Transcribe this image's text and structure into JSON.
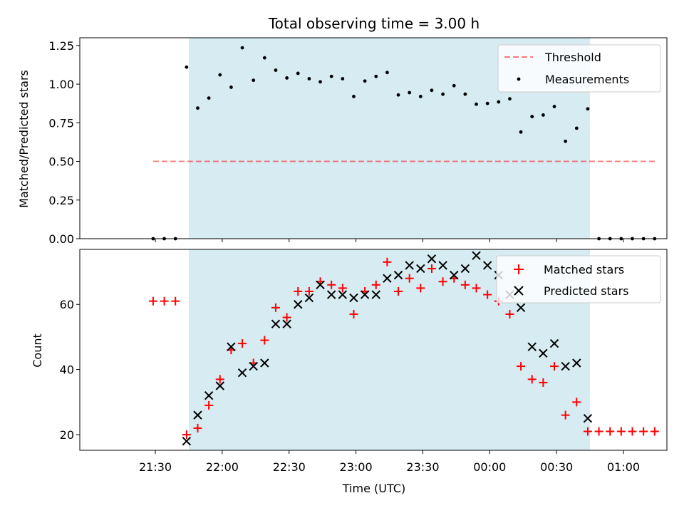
{
  "colors": {
    "span": "#add8e6",
    "threshold": "#ff0000",
    "measurement": "#000000",
    "matched": "#ff0000",
    "predicted": "#000000"
  },
  "chart_data": [
    {
      "type": "scatter",
      "title": "Total observing time = 3.00 h",
      "xlabel": "",
      "ylabel": "Matched/Predicted stars",
      "ylim": [
        0,
        1.3
      ],
      "yticks": [
        "0.00",
        "0.25",
        "0.50",
        "0.75",
        "1.00",
        "1.25"
      ],
      "grid": false,
      "legend": "top-right",
      "shaded_span": [
        "21:45",
        "00:45"
      ],
      "threshold": {
        "name": "Threshold",
        "value": 0.5,
        "x_range": [
          "21:29",
          "01:15"
        ]
      },
      "measurements": {
        "name": "Measurements",
        "x": [
          "21:29",
          "21:34",
          "21:39",
          "21:44",
          "21:49",
          "21:54",
          "21:59",
          "22:04",
          "22:09",
          "22:14",
          "22:19",
          "22:24",
          "22:29",
          "22:34",
          "22:39",
          "22:44",
          "22:49",
          "22:54",
          "22:59",
          "23:04",
          "23:09",
          "23:14",
          "23:19",
          "23:24",
          "23:29",
          "23:34",
          "23:39",
          "23:44",
          "23:49",
          "23:54",
          "23:59",
          "00:04",
          "00:09",
          "00:14",
          "00:19",
          "00:24",
          "00:29",
          "00:34",
          "00:39",
          "00:44",
          "00:49",
          "00:54",
          "00:59",
          "01:04",
          "01:09",
          "01:14"
        ],
        "y": [
          0,
          0,
          0,
          1.11,
          0.845,
          0.91,
          1.06,
          0.98,
          1.235,
          1.025,
          1.17,
          1.09,
          1.04,
          1.07,
          1.035,
          1.015,
          1.05,
          1.035,
          0.92,
          1.02,
          1.05,
          1.075,
          0.93,
          0.945,
          0.92,
          0.96,
          0.935,
          0.99,
          0.935,
          0.87,
          0.875,
          0.885,
          0.905,
          0.69,
          0.79,
          0.8,
          0.855,
          0.63,
          0.715,
          0.84,
          0,
          0,
          0,
          0,
          0,
          0
        ]
      }
    },
    {
      "type": "scatter",
      "title": "",
      "xlabel": "Time (UTC)",
      "ylabel": "Count",
      "ylim": [
        15.2,
        76.9
      ],
      "yticks": [
        "20",
        "40",
        "60"
      ],
      "xticks": [
        "21:30",
        "22:00",
        "22:30",
        "23:00",
        "23:30",
        "00:00",
        "00:30",
        "01:00"
      ],
      "grid": false,
      "legend": "top-right",
      "shaded_span": [
        "21:45",
        "00:45"
      ],
      "series": [
        {
          "name": "Matched stars",
          "marker": "+",
          "x": [
            "21:29",
            "21:34",
            "21:39",
            "21:44",
            "21:49",
            "21:54",
            "21:59",
            "22:04",
            "22:09",
            "22:14",
            "22:19",
            "22:24",
            "22:29",
            "22:34",
            "22:39",
            "22:44",
            "22:49",
            "22:54",
            "22:59",
            "23:04",
            "23:09",
            "23:14",
            "23:19",
            "23:24",
            "23:29",
            "23:34",
            "23:39",
            "23:44",
            "23:49",
            "23:54",
            "23:59",
            "00:04",
            "00:09",
            "00:14",
            "00:19",
            "00:24",
            "00:29",
            "00:34",
            "00:39",
            "00:44",
            "00:49",
            "00:54",
            "00:59",
            "01:04",
            "01:09",
            "01:14"
          ],
          "y": [
            61,
            61,
            61,
            20,
            22,
            29,
            37,
            46,
            48,
            42,
            49,
            59,
            56,
            64,
            64,
            67,
            66,
            65,
            57,
            64,
            66,
            73,
            64,
            68,
            65,
            71,
            67,
            68,
            66,
            65,
            63,
            61,
            57,
            41,
            37,
            36,
            41,
            26,
            30,
            21,
            21,
            21,
            21,
            21,
            21,
            21
          ]
        },
        {
          "name": "Predicted stars",
          "marker": "x",
          "x": [
            "21:44",
            "21:49",
            "21:54",
            "21:59",
            "22:04",
            "22:09",
            "22:14",
            "22:19",
            "22:24",
            "22:29",
            "22:34",
            "22:39",
            "22:44",
            "22:49",
            "22:54",
            "22:59",
            "23:04",
            "23:09",
            "23:14",
            "23:19",
            "23:24",
            "23:29",
            "23:34",
            "23:39",
            "23:44",
            "23:49",
            "23:54",
            "23:59",
            "00:04",
            "00:09",
            "00:14",
            "00:19",
            "00:24",
            "00:29",
            "00:34",
            "00:39",
            "00:44"
          ],
          "y": [
            18,
            26,
            32,
            35,
            47,
            39,
            41,
            42,
            54,
            54,
            60,
            62,
            66,
            63,
            63,
            62,
            63,
            63,
            68,
            69,
            72,
            71,
            74,
            72,
            69,
            71,
            75,
            72,
            69,
            63,
            59,
            47,
            45,
            48,
            41,
            42,
            25
          ]
        }
      ]
    }
  ]
}
